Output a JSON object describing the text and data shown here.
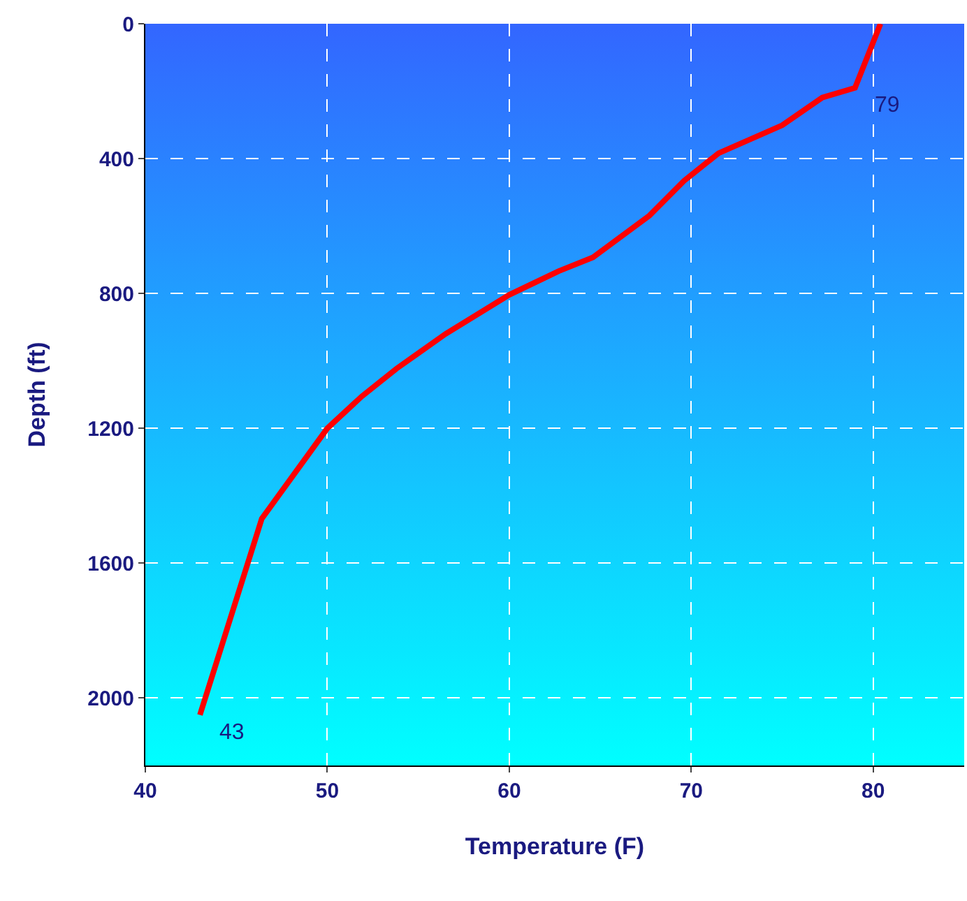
{
  "chart_data": {
    "type": "line",
    "xlabel": "Temperature (F)",
    "ylabel": "Depth (ft)",
    "x": [
      80.4,
      79,
      77.2,
      75,
      71.5,
      69.6,
      67.7,
      64.6,
      62.7,
      60,
      56.5,
      53.8,
      51.9,
      50,
      46.4,
      43
    ],
    "series": [
      {
        "color": "#ff0000",
        "values": [
          0,
          190,
          219,
          301,
          384,
          466,
          569,
          693,
          734,
          804,
          920,
          1023,
          1105,
          1200,
          1468,
          2050
        ]
      }
    ],
    "xlim": [
      40,
      85
    ],
    "xticks": [
      40,
      50,
      60,
      70,
      80
    ],
    "ylim": [
      2200,
      0
    ],
    "yticks": [
      0,
      400,
      800,
      1200,
      1600,
      2000
    ],
    "grid": true,
    "marker": "none",
    "line_style": "solid",
    "annotations": [
      {
        "text": "79",
        "x": 79,
        "y": 190
      },
      {
        "text": "43",
        "x": 43,
        "y": 2050
      }
    ]
  }
}
